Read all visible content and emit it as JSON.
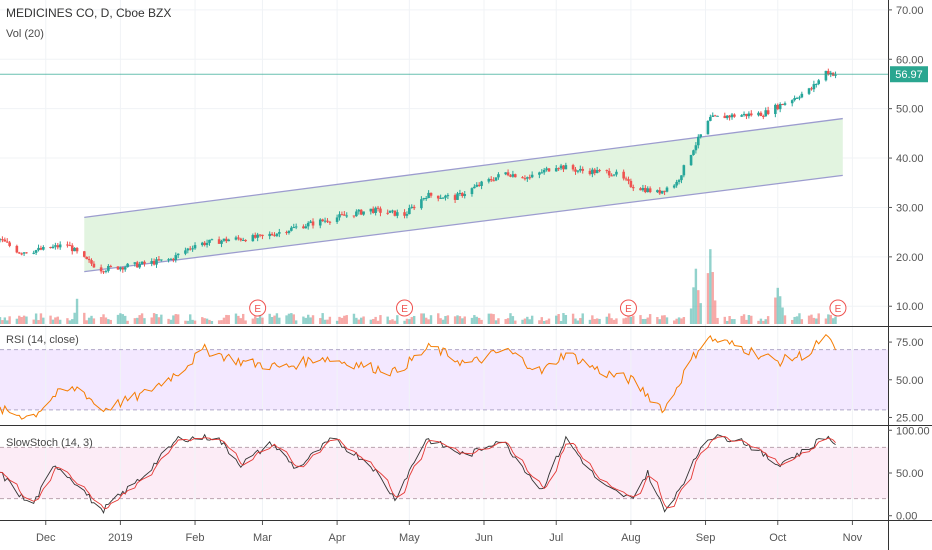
{
  "chart_data": {
    "type": "candlestick",
    "title": "MEDICINES CO, D, Cboe BZX",
    "volume_label": "Vol (20)",
    "x_ticks": [
      "Dec",
      "2019",
      "Feb",
      "Mar",
      "Apr",
      "May",
      "Jun",
      "Jul",
      "Aug",
      "Sep",
      "Oct",
      "Nov"
    ],
    "price_axis": {
      "ticks": [
        "70.00",
        "60.00",
        "50.00",
        "40.00",
        "30.00",
        "20.00",
        "10.00"
      ],
      "range": [
        6,
        72
      ]
    },
    "last_price": "56.97",
    "price_path": [
      [
        "2018-11-12",
        23.5
      ],
      [
        "2018-11-20",
        21.0
      ],
      [
        "2018-11-30",
        21.5
      ],
      [
        "2018-12-10",
        22.5
      ],
      [
        "2018-12-17",
        19.5
      ],
      [
        "2018-12-24",
        17.5
      ],
      [
        "2019-01-10",
        18.5
      ],
      [
        "2019-01-22",
        19.5
      ],
      [
        "2019-02-01",
        22.5
      ],
      [
        "2019-02-15",
        23.5
      ],
      [
        "2019-03-01",
        24.0
      ],
      [
        "2019-03-15",
        26.0
      ],
      [
        "2019-04-01",
        28.0
      ],
      [
        "2019-04-15",
        29.5
      ],
      [
        "2019-04-29",
        28.5
      ],
      [
        "2019-05-08",
        32.5
      ],
      [
        "2019-05-20",
        32.0
      ],
      [
        "2019-06-01",
        35.0
      ],
      [
        "2019-06-10",
        37.0
      ],
      [
        "2019-06-20",
        36.0
      ],
      [
        "2019-07-01",
        38.5
      ],
      [
        "2019-07-10",
        37.5
      ],
      [
        "2019-07-25",
        37.0
      ],
      [
        "2019-08-01",
        34.5
      ],
      [
        "2019-08-12",
        33.0
      ],
      [
        "2019-08-20",
        35.0
      ],
      [
        "2019-08-27",
        42.0
      ],
      [
        "2019-09-03",
        48.0
      ],
      [
        "2019-09-10",
        48.5
      ],
      [
        "2019-09-25",
        49.0
      ],
      [
        "2019-10-05",
        51.5
      ],
      [
        "2019-10-15",
        54.0
      ],
      [
        "2019-10-21",
        57.5
      ],
      [
        "2019-10-25",
        56.97
      ]
    ],
    "channel": {
      "upper": [
        [
          "2018-12-17",
          28.0
        ],
        [
          "2019-10-28",
          48.0
        ]
      ],
      "lower": [
        [
          "2018-12-17",
          17.0
        ],
        [
          "2019-10-28",
          36.5
        ]
      ]
    },
    "earnings_markers": {
      "label": "E",
      "dates": [
        "2019-02-27",
        "2019-04-29",
        "2019-07-31",
        "2019-10-26"
      ]
    },
    "rsi": {
      "label": "RSI (14, close)",
      "ticks": [
        "75.00",
        "50.00",
        "25.00"
      ],
      "range": [
        20,
        85
      ],
      "bands": [
        70,
        30
      ],
      "path": [
        [
          "2018-11-12",
          30
        ],
        [
          "2018-11-25",
          25
        ],
        [
          "2018-12-05",
          40
        ],
        [
          "2018-12-15",
          45
        ],
        [
          "2018-12-24",
          30
        ],
        [
          "2019-01-10",
          40
        ],
        [
          "2019-01-25",
          55
        ],
        [
          "2019-02-05",
          70
        ],
        [
          "2019-02-20",
          62
        ],
        [
          "2019-03-10",
          58
        ],
        [
          "2019-03-25",
          65
        ],
        [
          "2019-04-10",
          60
        ],
        [
          "2019-04-25",
          55
        ],
        [
          "2019-05-10",
          72
        ],
        [
          "2019-05-25",
          60
        ],
        [
          "2019-06-10",
          70
        ],
        [
          "2019-06-25",
          55
        ],
        [
          "2019-07-05",
          68
        ],
        [
          "2019-07-20",
          55
        ],
        [
          "2019-08-01",
          50
        ],
        [
          "2019-08-15",
          30
        ],
        [
          "2019-08-25",
          60
        ],
        [
          "2019-09-01",
          78
        ],
        [
          "2019-09-15",
          72
        ],
        [
          "2019-10-01",
          62
        ],
        [
          "2019-10-15",
          68
        ],
        [
          "2019-10-20",
          80
        ],
        [
          "2019-10-25",
          70
        ]
      ]
    },
    "stoch": {
      "label": "SlowStoch (14, 3)",
      "ticks": [
        "100.00",
        "50.00",
        "0.00"
      ],
      "range": [
        -5,
        105
      ],
      "bands": [
        80,
        20
      ],
      "k_path": [
        [
          "2018-11-12",
          50
        ],
        [
          "2018-11-25",
          10
        ],
        [
          "2018-12-05",
          60
        ],
        [
          "2018-12-15",
          35
        ],
        [
          "2018-12-24",
          5
        ],
        [
          "2019-01-10",
          45
        ],
        [
          "2019-01-25",
          90
        ],
        [
          "2019-02-10",
          92
        ],
        [
          "2019-02-20",
          60
        ],
        [
          "2019-03-05",
          85
        ],
        [
          "2019-03-15",
          55
        ],
        [
          "2019-03-30",
          90
        ],
        [
          "2019-04-15",
          60
        ],
        [
          "2019-04-25",
          20
        ],
        [
          "2019-05-08",
          90
        ],
        [
          "2019-05-25",
          70
        ],
        [
          "2019-06-08",
          90
        ],
        [
          "2019-06-25",
          30
        ],
        [
          "2019-07-05",
          90
        ],
        [
          "2019-07-20",
          35
        ],
        [
          "2019-08-01",
          20
        ],
        [
          "2019-08-08",
          50
        ],
        [
          "2019-08-15",
          5
        ],
        [
          "2019-08-25",
          50
        ],
        [
          "2019-09-01",
          92
        ],
        [
          "2019-09-15",
          90
        ],
        [
          "2019-10-01",
          60
        ],
        [
          "2019-10-15",
          80
        ],
        [
          "2019-10-20",
          95
        ],
        [
          "2019-10-25",
          85
        ]
      ]
    },
    "volume_spikes": [
      [
        "2018-12-15",
        0.35
      ],
      [
        "2019-08-28",
        0.55
      ],
      [
        "2019-09-03",
        0.82
      ],
      [
        "2019-10-01",
        0.4
      ]
    ]
  },
  "colors": {
    "up": "#26a69a",
    "down": "#ef5350",
    "channel_fill": "#dff3dd",
    "channel_line": "#9c9ccf",
    "rsi_band": "#f3e8ff",
    "stoch_band": "#fcecf6",
    "price_label_bg": "#2aa690",
    "text": "#333333"
  }
}
